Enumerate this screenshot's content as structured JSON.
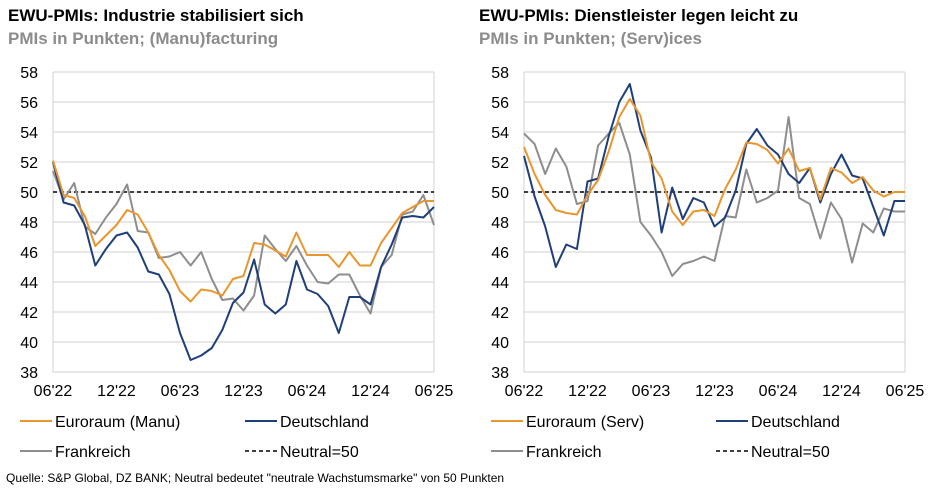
{
  "source": "Quelle: S&P Global, DZ BANK; Neutral bedeutet \"neutrale Wachstumsmarke\" von 50 Punkten",
  "colors": {
    "euro": "#E8962E",
    "de": "#1F3F78",
    "fr": "#8E8E8E",
    "neutral": "#000000",
    "grid": "#D0D0D0"
  },
  "chart_data": [
    {
      "type": "line",
      "title": "EWU-PMIs: Industrie stabilisiert sich",
      "subtitle": "PMIs in Punkten; (Manu)facturing",
      "xlabel": "",
      "ylabel": "",
      "ylim": [
        38,
        58
      ],
      "yticks": [
        38,
        40,
        42,
        44,
        46,
        48,
        50,
        52,
        54,
        56,
        58
      ],
      "x_tick_labels": [
        "06'22",
        "12'22",
        "06'23",
        "12'23",
        "06'24",
        "12'24",
        "06'25"
      ],
      "months": 37,
      "grid": true,
      "neutral": 50,
      "series": [
        {
          "name": "Euroraum (Manu)",
          "key": "euro",
          "values": [
            52.1,
            49.8,
            49.6,
            48.4,
            46.4,
            47.1,
            47.8,
            48.8,
            48.5,
            47.3,
            45.8,
            44.8,
            43.4,
            42.7,
            43.5,
            43.4,
            43.1,
            44.2,
            44.4,
            46.6,
            46.5,
            46.1,
            45.7,
            47.3,
            45.8,
            45.8,
            45.8,
            45.0,
            46.0,
            45.1,
            45.1,
            46.6,
            47.6,
            48.6,
            49.0,
            49.4,
            49.4
          ]
        },
        {
          "name": "Deutschland",
          "key": "de",
          "values": [
            52.0,
            49.3,
            49.1,
            47.8,
            45.1,
            46.2,
            47.1,
            47.3,
            46.3,
            44.7,
            44.5,
            43.2,
            40.6,
            38.8,
            39.1,
            39.6,
            40.8,
            42.6,
            43.3,
            45.5,
            42.5,
            41.9,
            42.5,
            45.4,
            43.5,
            43.2,
            42.4,
            40.6,
            43.0,
            43.0,
            42.5,
            45.0,
            46.5,
            48.3,
            48.4,
            48.3,
            49.0
          ]
        },
        {
          "name": "Frankreich",
          "key": "fr",
          "values": [
            51.4,
            49.5,
            50.6,
            47.7,
            47.2,
            48.3,
            49.2,
            50.5,
            47.4,
            47.3,
            45.6,
            45.7,
            46.0,
            45.1,
            46.0,
            44.2,
            42.8,
            42.9,
            42.1,
            43.1,
            47.1,
            46.2,
            45.4,
            46.4,
            45.1,
            44.0,
            43.9,
            44.5,
            44.5,
            43.1,
            41.9,
            45.0,
            45.8,
            48.5,
            48.7,
            49.8,
            47.8
          ]
        }
      ],
      "legend": [
        {
          "label": "Euroraum (Manu)",
          "key": "euro",
          "dash": false
        },
        {
          "label": "Deutschland",
          "key": "de",
          "dash": false
        },
        {
          "label": "Frankreich",
          "key": "fr",
          "dash": false
        },
        {
          "label": "Neutral=50",
          "key": "neutral",
          "dash": true
        }
      ]
    },
    {
      "type": "line",
      "title": "EWU-PMIs: Dienstleister legen leicht zu",
      "subtitle": "PMIs in Punkten; (Serv)ices",
      "xlabel": "",
      "ylabel": "",
      "ylim": [
        38,
        58
      ],
      "yticks": [
        38,
        40,
        42,
        44,
        46,
        48,
        50,
        52,
        54,
        56,
        58
      ],
      "x_tick_labels": [
        "06'22",
        "12'22",
        "06'23",
        "12'23",
        "06'24",
        "12'24",
        "06'25"
      ],
      "months": 37,
      "grid": true,
      "neutral": 50,
      "series": [
        {
          "name": "Euroraum (Serv)",
          "key": "euro",
          "values": [
            53.0,
            51.2,
            49.8,
            48.8,
            48.6,
            48.5,
            49.8,
            50.8,
            52.7,
            55.0,
            56.2,
            55.1,
            52.0,
            50.9,
            48.7,
            47.8,
            48.7,
            48.8,
            48.4,
            50.2,
            51.5,
            53.3,
            53.2,
            52.8,
            51.9,
            52.9,
            51.4,
            51.6,
            49.5,
            51.6,
            51.3,
            50.6,
            51.0,
            50.1,
            49.7,
            50.0,
            50.0
          ]
        },
        {
          "name": "Deutschland",
          "key": "de",
          "values": [
            52.4,
            49.7,
            47.7,
            45.0,
            46.5,
            46.2,
            50.7,
            50.9,
            53.7,
            56.0,
            57.2,
            54.1,
            52.3,
            47.3,
            50.3,
            48.2,
            49.6,
            49.3,
            47.7,
            48.3,
            50.1,
            53.2,
            54.2,
            53.1,
            52.5,
            51.2,
            50.6,
            51.6,
            49.3,
            51.2,
            52.5,
            51.1,
            50.9,
            49.0,
            47.1,
            49.4,
            49.4
          ]
        },
        {
          "name": "Frankreich",
          "key": "fr",
          "values": [
            53.9,
            53.2,
            51.2,
            52.9,
            51.7,
            49.2,
            49.4,
            53.1,
            53.9,
            54.6,
            52.5,
            48.0,
            47.1,
            46.0,
            44.4,
            45.2,
            45.4,
            45.7,
            45.4,
            48.4,
            48.3,
            51.5,
            49.3,
            49.6,
            50.1,
            55.0,
            49.6,
            49.2,
            46.9,
            49.3,
            48.2,
            45.3,
            47.9,
            47.3,
            48.9,
            48.7,
            48.7
          ]
        }
      ],
      "legend": [
        {
          "label": "Euroraum (Serv)",
          "key": "euro",
          "dash": false
        },
        {
          "label": "Deutschland",
          "key": "de",
          "dash": false
        },
        {
          "label": "Frankreich",
          "key": "fr",
          "dash": false
        },
        {
          "label": "Neutral=50",
          "key": "neutral",
          "dash": true
        }
      ]
    }
  ]
}
